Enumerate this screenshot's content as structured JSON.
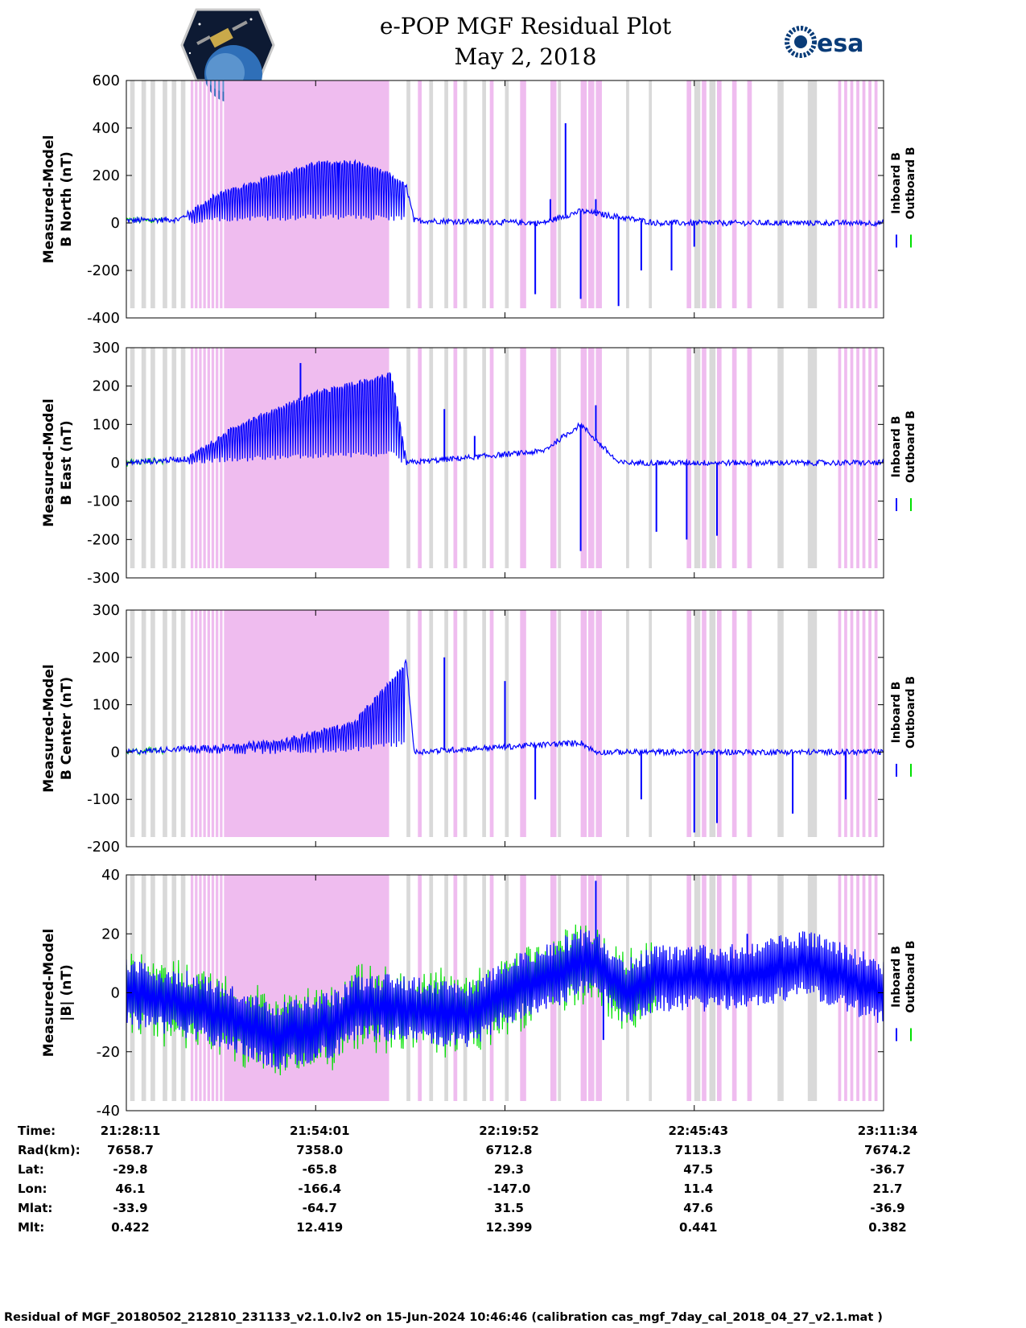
{
  "header": {
    "title_line1": "e-POP MGF Residual Plot",
    "title_line2": "May 2, 2018",
    "left_logo": "cassiope-mission-logo",
    "right_logo_text": "esa"
  },
  "colors": {
    "inboard": "#0000ff",
    "outboard": "#00e000",
    "magenta_band": "#efbcef",
    "gray_band": "#d9d9d9"
  },
  "legend": {
    "inboard": "Inboard B",
    "outboard": "Outboard B"
  },
  "chart_data": [
    {
      "type": "line",
      "panel": "north",
      "ylabel_line1": "Measured-Model",
      "ylabel_line2": "B North (nT)",
      "ylim": [
        -400,
        600
      ],
      "yticks": [
        "600",
        "400",
        "200",
        "0",
        "-200",
        "-400"
      ],
      "series": [
        {
          "name": "Inboard B",
          "color": "blue"
        },
        {
          "name": "Outboard B",
          "color": "green"
        }
      ],
      "profile": [
        [
          0,
          10
        ],
        [
          0.07,
          15
        ],
        [
          0.12,
          120
        ],
        [
          0.2,
          200
        ],
        [
          0.25,
          250
        ],
        [
          0.3,
          255
        ],
        [
          0.35,
          200
        ],
        [
          0.37,
          150
        ],
        [
          0.38,
          10
        ],
        [
          0.55,
          0
        ],
        [
          0.6,
          50
        ],
        [
          0.7,
          0
        ],
        [
          0.8,
          0
        ],
        [
          1,
          0
        ]
      ],
      "spikes": [
        [
          0.28,
          100
        ],
        [
          0.54,
          -300
        ],
        [
          0.56,
          100
        ],
        [
          0.58,
          420
        ],
        [
          0.6,
          -320
        ],
        [
          0.62,
          100
        ],
        [
          0.65,
          -350
        ],
        [
          0.68,
          -200
        ],
        [
          0.72,
          -200
        ],
        [
          0.75,
          -100
        ]
      ]
    },
    {
      "type": "line",
      "panel": "east",
      "ylabel_line1": "Measured-Model",
      "ylabel_line2": "B East (nT)",
      "ylim": [
        -300,
        300
      ],
      "yticks": [
        "300",
        "200",
        "100",
        "0",
        "-100",
        "-200",
        "-300"
      ],
      "series": [
        {
          "name": "Inboard B",
          "color": "blue"
        },
        {
          "name": "Outboard B",
          "color": "green"
        }
      ],
      "profile": [
        [
          0,
          0
        ],
        [
          0.08,
          10
        ],
        [
          0.15,
          100
        ],
        [
          0.25,
          180
        ],
        [
          0.35,
          230
        ],
        [
          0.37,
          0
        ],
        [
          0.55,
          30
        ],
        [
          0.6,
          100
        ],
        [
          0.65,
          0
        ],
        [
          1,
          0
        ]
      ],
      "spikes": [
        [
          0.23,
          260
        ],
        [
          0.42,
          140
        ],
        [
          0.46,
          70
        ],
        [
          0.6,
          -230
        ],
        [
          0.62,
          150
        ],
        [
          0.7,
          -180
        ],
        [
          0.74,
          -200
        ],
        [
          0.78,
          -190
        ]
      ]
    },
    {
      "type": "line",
      "panel": "center",
      "ylabel_line1": "Measured-Model",
      "ylabel_line2": "B Center (nT)",
      "ylim": [
        -200,
        300
      ],
      "yticks": [
        "300",
        "200",
        "100",
        "0",
        "-100",
        "-200"
      ],
      "series": [
        {
          "name": "Inboard B",
          "color": "blue"
        },
        {
          "name": "Outboard B",
          "color": "green"
        }
      ],
      "profile": [
        [
          0,
          0
        ],
        [
          0.1,
          10
        ],
        [
          0.2,
          20
        ],
        [
          0.3,
          60
        ],
        [
          0.35,
          150
        ],
        [
          0.37,
          190
        ],
        [
          0.38,
          0
        ],
        [
          0.6,
          20
        ],
        [
          0.62,
          0
        ],
        [
          1,
          0
        ]
      ],
      "spikes": [
        [
          0.42,
          200
        ],
        [
          0.5,
          150
        ],
        [
          0.54,
          -100
        ],
        [
          0.68,
          -100
        ],
        [
          0.75,
          -170
        ],
        [
          0.78,
          -150
        ],
        [
          0.88,
          -130
        ],
        [
          0.95,
          -100
        ]
      ]
    },
    {
      "type": "line",
      "panel": "total",
      "ylabel_line1": "Measured-Model",
      "ylabel_line2": "|B| (nT)",
      "ylim": [
        -40,
        40
      ],
      "yticks": [
        "40",
        "20",
        "0",
        "-20",
        "-40"
      ],
      "series": [
        {
          "name": "Inboard B",
          "color": "blue"
        },
        {
          "name": "Outboard B",
          "color": "green"
        }
      ],
      "profile": [
        [
          0,
          0
        ],
        [
          0.1,
          -5
        ],
        [
          0.2,
          -15
        ],
        [
          0.28,
          -10
        ],
        [
          0.3,
          -5
        ],
        [
          0.35,
          -5
        ],
        [
          0.45,
          -8
        ],
        [
          0.5,
          0
        ],
        [
          0.55,
          5
        ],
        [
          0.6,
          10
        ],
        [
          0.62,
          10
        ],
        [
          0.66,
          0
        ],
        [
          0.7,
          5
        ],
        [
          0.8,
          5
        ],
        [
          0.9,
          10
        ],
        [
          1,
          0
        ]
      ],
      "spikes": [
        [
          0.62,
          38
        ],
        [
          0.63,
          -16
        ],
        [
          0.25,
          -22
        ],
        [
          0.82,
          20
        ]
      ]
    }
  ],
  "xaxis": {
    "ticks": [
      "21:28:11",
      "21:54:01",
      "22:19:52",
      "22:45:43",
      "23:11:34"
    ]
  },
  "info_table": {
    "rows": [
      {
        "label": "Time:",
        "values": [
          "21:28:11",
          "21:54:01",
          "22:19:52",
          "22:45:43",
          "23:11:34"
        ]
      },
      {
        "label": "Rad(km):",
        "values": [
          "7658.7",
          "7358.0",
          "6712.8",
          "7113.3",
          "7674.2"
        ]
      },
      {
        "label": "Lat:",
        "values": [
          "-29.8",
          "-65.8",
          "29.3",
          "47.5",
          "-36.7"
        ]
      },
      {
        "label": "Lon:",
        "values": [
          "46.1",
          "-166.4",
          "-147.0",
          "11.4",
          "21.7"
        ]
      },
      {
        "label": "Mlat:",
        "values": [
          "-33.9",
          "-64.7",
          "31.5",
          "47.6",
          "-36.9"
        ]
      },
      {
        "label": "Mlt:",
        "values": [
          "0.422",
          "12.419",
          "12.399",
          "0.441",
          "0.382"
        ]
      }
    ]
  },
  "footer_text": "Residual of MGF_20180502_212810_231133_v2.1.0.lv2 on 15-Jun-2024 10:46:46 (calibration cas_mgf_7day_cal_2018_04_27_v2.1.mat )"
}
